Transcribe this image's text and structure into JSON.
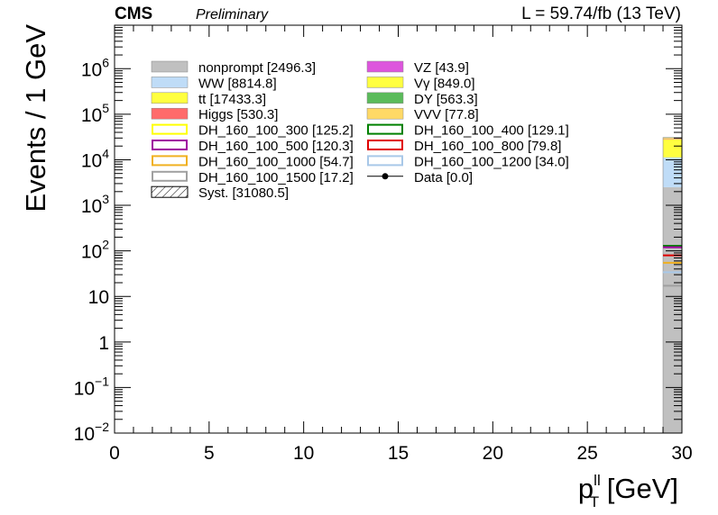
{
  "header": {
    "experiment": "CMS",
    "status": "Preliminary",
    "lumi": "L = 59.74/fb (13 TeV)"
  },
  "chart_data": {
    "type": "bar",
    "title": "",
    "xlabel_main": "p",
    "xlabel_sup": "ll",
    "xlabel_sub": "T",
    "xlabel_unit": " [GeV]",
    "ylabel": "Events / 1 GeV",
    "xlim": [
      0,
      30
    ],
    "ylim": [
      0.01,
      9000000
    ],
    "log_y": true,
    "grid": false,
    "legend_position": "top",
    "x_ticks": [
      {
        "value": 0,
        "label": "0"
      },
      {
        "value": 5,
        "label": "5"
      },
      {
        "value": 10,
        "label": "10"
      },
      {
        "value": 15,
        "label": "15"
      },
      {
        "value": 20,
        "label": "20"
      },
      {
        "value": 25,
        "label": "25"
      },
      {
        "value": 30,
        "label": "30"
      }
    ],
    "y_ticks": [
      {
        "value": 0.01,
        "base": "10",
        "exp": "−2"
      },
      {
        "value": 0.1,
        "base": "10",
        "exp": "−1"
      },
      {
        "value": 1,
        "base": "1",
        "exp": ""
      },
      {
        "value": 10,
        "base": "10",
        "exp": ""
      },
      {
        "value": 100,
        "base": "10",
        "exp": "2"
      },
      {
        "value": 1000,
        "base": "10",
        "exp": "3"
      },
      {
        "value": 10000,
        "base": "10",
        "exp": "4"
      },
      {
        "value": 100000,
        "base": "10",
        "exp": "5"
      },
      {
        "value": 1000000,
        "base": "10",
        "exp": "6"
      }
    ],
    "bin": [
      29,
      30
    ],
    "stack": [
      {
        "name": "nonprompt [2496.3]",
        "color": "#c0c0c0",
        "top": 2496.3
      },
      {
        "name": "WW [8814.8]",
        "color": "#bfdcf7",
        "top": 11311
      },
      {
        "name": "tt [17433.3]",
        "color": "#ffff40",
        "top": 28744
      },
      {
        "name": "Higgs [530.3]",
        "color": "#ff6b6b",
        "top": 29275
      },
      {
        "name": "VZ [43.9]",
        "color": "#dd55dd",
        "top": 29319
      },
      {
        "name": "Vγ [849.0]",
        "color": "#ffff40",
        "top": 30168
      },
      {
        "name": "DY [563.3]",
        "color": "#5bbb5b",
        "top": 30731
      },
      {
        "name": "VVV [77.8]",
        "color": "#ffd966",
        "top": 30809
      }
    ],
    "signals": [
      {
        "name": "DH_160_100_300 [125.2]",
        "color": "#ffff00",
        "value": 125.2
      },
      {
        "name": "DH_160_100_400 [129.1]",
        "color": "#008000",
        "value": 129.1
      },
      {
        "name": "DH_160_100_500 [120.3]",
        "color": "#a000a0",
        "value": 120.3
      },
      {
        "name": "DH_160_100_800 [79.8]",
        "color": "#e00000",
        "value": 79.8
      },
      {
        "name": "DH_160_100_1000 [54.7]",
        "color": "#f0b020",
        "value": 54.7
      },
      {
        "name": "DH_160_100_1200 [34.0]",
        "color": "#a8c8e8",
        "value": 34.0
      },
      {
        "name": "DH_160_100_1500 [17.2]",
        "color": "#a0a0a0",
        "value": 17.2
      }
    ],
    "legend": {
      "left": [
        {
          "label": "nonprompt [2496.3]",
          "style": "fill",
          "color": "#c0c0c0"
        },
        {
          "label": "WW [8814.8]",
          "style": "fill",
          "color": "#bfdcf7"
        },
        {
          "label": "tt [17433.3]",
          "style": "fill",
          "color": "#ffff40"
        },
        {
          "label": "Higgs [530.3]",
          "style": "fill",
          "color": "#ff6b6b"
        },
        {
          "label": "DH_160_100_300 [125.2]",
          "style": "outline",
          "color": "#ffff00"
        },
        {
          "label": "DH_160_100_500 [120.3]",
          "style": "outline",
          "color": "#a000a0"
        },
        {
          "label": "DH_160_100_1000 [54.7]",
          "style": "outline",
          "color": "#f0b020"
        },
        {
          "label": "DH_160_100_1500 [17.2]",
          "style": "outline",
          "color": "#a0a0a0"
        },
        {
          "label": "Syst. [31080.5]",
          "style": "hatch",
          "color": "#000000"
        }
      ],
      "right": [
        {
          "label": "VZ [43.9]",
          "style": "fill",
          "color": "#dd55dd"
        },
        {
          "label": "Vγ [849.0]",
          "style": "fill",
          "color": "#ffff40"
        },
        {
          "label": "DY [563.3]",
          "style": "fill",
          "color": "#5bbb5b"
        },
        {
          "label": "VVV [77.8]",
          "style": "fill",
          "color": "#ffd966"
        },
        {
          "label": "DH_160_100_400 [129.1]",
          "style": "outline",
          "color": "#008000"
        },
        {
          "label": "DH_160_100_800 [79.8]",
          "style": "outline",
          "color": "#e00000"
        },
        {
          "label": "DH_160_100_1200 [34.0]",
          "style": "outline",
          "color": "#a8c8e8"
        },
        {
          "label": "Data [0.0]",
          "style": "marker",
          "color": "#000000"
        }
      ]
    }
  }
}
